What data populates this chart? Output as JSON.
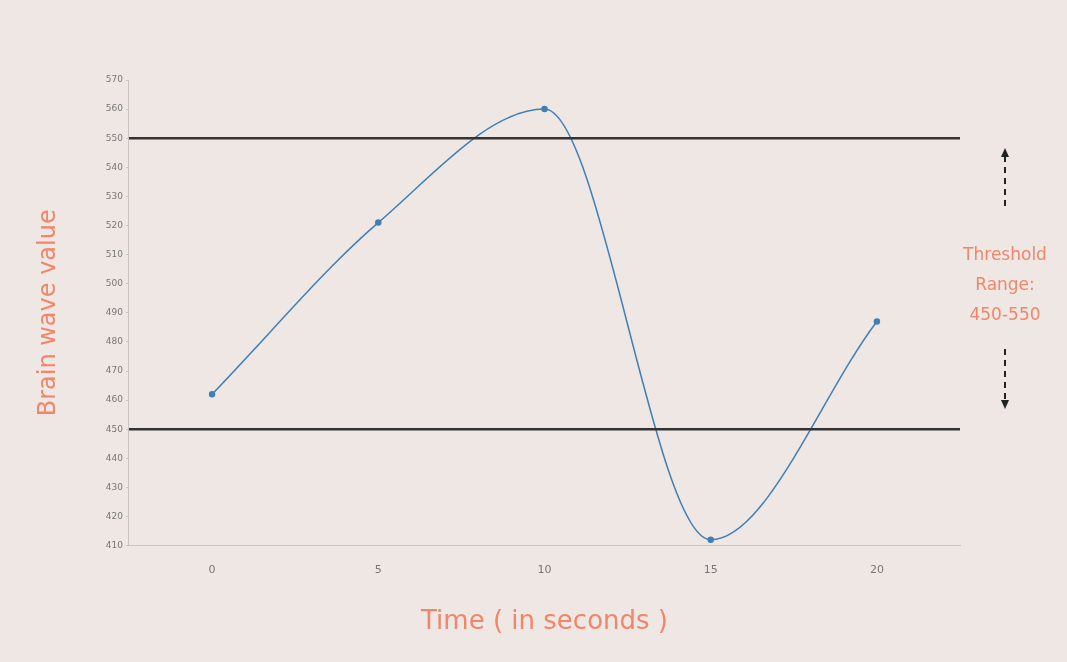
{
  "chart_data": {
    "type": "line",
    "xlabel": "Time ( in seconds )",
    "ylabel": "Brain wave value",
    "x": [
      0,
      5,
      10,
      15,
      20
    ],
    "series": [
      {
        "color": "#3f7fb5",
        "values": [
          462,
          521,
          560,
          412,
          487
        ]
      }
    ],
    "xlim": [
      -2.5,
      22.5
    ],
    "xticks": [
      0,
      5,
      10,
      15,
      20
    ],
    "ylim": [
      410,
      570
    ],
    "yticks": [
      410,
      420,
      430,
      440,
      450,
      460,
      470,
      480,
      490,
      500,
      510,
      520,
      530,
      540,
      550,
      560,
      570
    ],
    "ref_lines": [
      {
        "axis": "y",
        "value": 550,
        "color": "#333333"
      },
      {
        "axis": "y",
        "value": 450,
        "color": "#333333"
      }
    ],
    "annotations": [
      "Threshold Range: 450-550"
    ],
    "grid": false,
    "legend": false,
    "marker": "circle",
    "line_style": "solid"
  }
}
